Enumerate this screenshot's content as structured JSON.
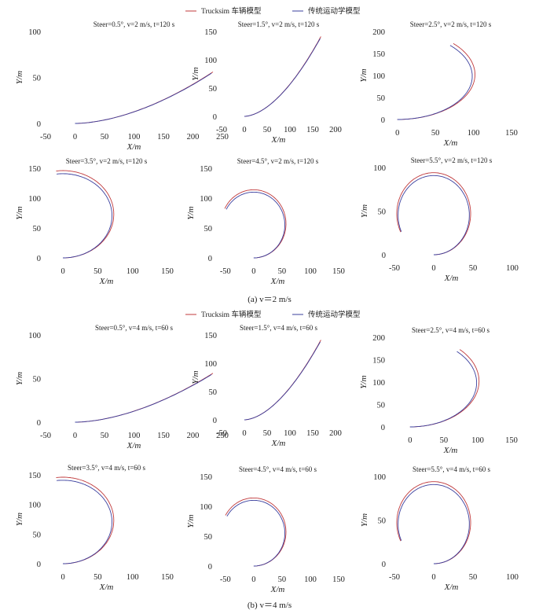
{
  "legend": {
    "entries": [
      {
        "label": "Trucksim 车辆模型",
        "color": "#c0393b"
      },
      {
        "label": "传统运动学模型",
        "color": "#3a3f9e"
      }
    ]
  },
  "captions": [
    "(a)  v＝2 m/s",
    "(b)  v＝4 m/s"
  ],
  "chart_data": [
    {
      "type": "line",
      "title": "Steer=0.5°, v=2 m/s, t=120 s",
      "xlabel": "X/m",
      "ylabel": "Y/m",
      "xlim": [
        -50,
        250
      ],
      "ylim": [
        0,
        100
      ],
      "xticks": [
        -50,
        0,
        50,
        100,
        150,
        200,
        250
      ],
      "yticks": [
        0,
        50,
        100
      ],
      "steer_deg": 0.5,
      "speed_mps": 2,
      "duration_s": 120,
      "end_point": [
        234,
        56
      ],
      "series": [
        {
          "name": "Trucksim 车辆模型",
          "color": "#c0393b"
        },
        {
          "name": "传统运动学模型",
          "color": "#3a3f9e"
        }
      ]
    },
    {
      "type": "line",
      "title": "Steer=1.5°, v=2 m/s, t=120 s",
      "xlabel": "X/m",
      "ylabel": "Y/m",
      "xlim": [
        -50,
        200
      ],
      "ylim": [
        0,
        150
      ],
      "xticks": [
        -50,
        0,
        50,
        100,
        150,
        200
      ],
      "yticks": [
        0,
        50,
        100,
        150
      ],
      "steer_deg": 1.5,
      "speed_mps": 2,
      "duration_s": 120,
      "end_point": [
        168,
        141
      ],
      "series": [
        {
          "name": "Trucksim 车辆模型",
          "color": "#c0393b"
        },
        {
          "name": "传统运动学模型",
          "color": "#3a3f9e"
        }
      ]
    },
    {
      "type": "line",
      "title": "Steer=2.5°, v=2 m/s, t=120 s",
      "xlabel": "X/m",
      "ylabel": "Y/m",
      "xlim": [
        -10,
        150
      ],
      "ylim": [
        0,
        200
      ],
      "xticks": [
        0,
        50,
        100,
        150
      ],
      "yticks": [
        0,
        50,
        100,
        150,
        200
      ],
      "steer_deg": 2.5,
      "speed_mps": 2,
      "duration_s": 120,
      "end_point": [
        73,
        172
      ],
      "series": [
        {
          "name": "Trucksim 车辆模型",
          "color": "#c0393b"
        },
        {
          "name": "传统运动学模型",
          "color": "#3a3f9e"
        }
      ]
    },
    {
      "type": "line",
      "title": "Steer=3.5°, v=2 m/s, t=120 s",
      "xlabel": "X/m",
      "ylabel": "Y/m",
      "xlim": [
        -25,
        150
      ],
      "ylim": [
        0,
        150
      ],
      "xticks": [
        0,
        50,
        100,
        150
      ],
      "yticks": [
        0,
        50,
        100,
        150
      ],
      "steer_deg": 3.5,
      "speed_mps": 2,
      "duration_s": 120,
      "end_point": [
        -10,
        147
      ],
      "series": [
        {
          "name": "Trucksim 车辆模型",
          "color": "#c0393b"
        },
        {
          "name": "传统运动学模型",
          "color": "#3a3f9e"
        }
      ]
    },
    {
      "type": "line",
      "title": "Steer=4.5°, v=2 m/s, t=120 s",
      "xlabel": "X/m",
      "ylabel": "Y/m",
      "xlim": [
        -65,
        150
      ],
      "ylim": [
        0,
        150
      ],
      "xticks": [
        -50,
        0,
        50,
        100,
        150
      ],
      "yticks": [
        0,
        50,
        100,
        150
      ],
      "steer_deg": 4.5,
      "speed_mps": 2,
      "duration_s": 120,
      "end_point": [
        -50,
        82
      ],
      "series": [
        {
          "name": "Trucksim 车辆模型",
          "color": "#c0393b"
        },
        {
          "name": "传统运动学模型",
          "color": "#3a3f9e"
        }
      ]
    },
    {
      "type": "line",
      "title": "Steer=5.5°, v=2 m/s, t=120 s",
      "xlabel": "X/m",
      "ylabel": "Y/m",
      "xlim": [
        -55,
        100
      ],
      "ylim": [
        0,
        100
      ],
      "xticks": [
        -50,
        0,
        50,
        100
      ],
      "yticks": [
        0,
        50,
        100
      ],
      "steer_deg": 5.5,
      "speed_mps": 2,
      "duration_s": 120,
      "end_point": [
        -42,
        26
      ],
      "series": [
        {
          "name": "Trucksim 车辆模型",
          "color": "#c0393b"
        },
        {
          "name": "传统运动学模型",
          "color": "#3a3f9e"
        }
      ]
    },
    {
      "type": "line",
      "title": "Steer=0.5°, v=4 m/s, t=60 s",
      "xlabel": "X/m",
      "ylabel": "Y/m",
      "xlim": [
        -50,
        250
      ],
      "ylim": [
        0,
        100
      ],
      "xticks": [
        -50,
        0,
        50,
        100,
        150,
        200,
        250
      ],
      "yticks": [
        0,
        50,
        100
      ],
      "steer_deg": 0.5,
      "speed_mps": 4,
      "duration_s": 60,
      "end_point": [
        234,
        56
      ],
      "series": [
        {
          "name": "Trucksim 车辆模型",
          "color": "#c0393b"
        },
        {
          "name": "传统运动学模型",
          "color": "#3a3f9e"
        }
      ]
    },
    {
      "type": "line",
      "title": "Steer=1.5°, v=4 m/s, t=60 s",
      "xlabel": "X/m",
      "ylabel": "Y/m",
      "xlim": [
        -50,
        200
      ],
      "ylim": [
        0,
        150
      ],
      "xticks": [
        -50,
        0,
        50,
        100,
        150,
        200
      ],
      "yticks": [
        0,
        50,
        100,
        150
      ],
      "steer_deg": 1.5,
      "speed_mps": 4,
      "duration_s": 60,
      "end_point": [
        168,
        141
      ],
      "series": [
        {
          "name": "Trucksim 车辆模型",
          "color": "#c0393b"
        },
        {
          "name": "传统运动学模型",
          "color": "#3a3f9e"
        }
      ]
    },
    {
      "type": "line",
      "title": "Steer=2.5°, v=4 m/s, t=60 s",
      "xlabel": "X/m",
      "ylabel": "Y/m",
      "xlim": [
        -30,
        150
      ],
      "ylim": [
        0,
        200
      ],
      "xticks": [
        0,
        50,
        100,
        150
      ],
      "yticks": [
        0,
        50,
        100,
        150,
        200
      ],
      "steer_deg": 2.5,
      "speed_mps": 4,
      "duration_s": 60,
      "end_point": [
        78,
        177
      ],
      "series": [
        {
          "name": "Trucksim 车辆模型",
          "color": "#c0393b"
        },
        {
          "name": "传统运动学模型",
          "color": "#3a3f9e"
        }
      ]
    },
    {
      "type": "line",
      "title": "Steer=3.5°, v=4 m/s, t=60 s",
      "xlabel": "X/m",
      "ylabel": "Y/m",
      "xlim": [
        -25,
        150
      ],
      "ylim": [
        0,
        150
      ],
      "xticks": [
        0,
        50,
        100,
        150
      ],
      "yticks": [
        0,
        50,
        100,
        150
      ],
      "steer_deg": 3.5,
      "speed_mps": 4,
      "duration_s": 60,
      "end_point": [
        -10,
        147
      ],
      "series": [
        {
          "name": "Trucksim 车辆模型",
          "color": "#c0393b"
        },
        {
          "name": "传统运动学模型",
          "color": "#3a3f9e"
        }
      ]
    },
    {
      "type": "line",
      "title": "Steer=4.5°, v=4 m/s, t=60 s",
      "xlabel": "X/m",
      "ylabel": "Y/m",
      "xlim": [
        -65,
        150
      ],
      "ylim": [
        0,
        150
      ],
      "xticks": [
        -50,
        0,
        50,
        100,
        150
      ],
      "yticks": [
        0,
        50,
        100,
        150
      ],
      "steer_deg": 4.5,
      "speed_mps": 4,
      "duration_s": 60,
      "end_point": [
        -50,
        85
      ],
      "series": [
        {
          "name": "Trucksim 车辆模型",
          "color": "#c0393b"
        },
        {
          "name": "传统运动学模型",
          "color": "#3a3f9e"
        }
      ]
    },
    {
      "type": "line",
      "title": "Steer=5.5°, v=4 m/s, t=60 s",
      "xlabel": "X/m",
      "ylabel": "Y/m",
      "xlim": [
        -55,
        100
      ],
      "ylim": [
        0,
        100
      ],
      "xticks": [
        -50,
        0,
        50,
        100
      ],
      "yticks": [
        0,
        50,
        100
      ],
      "steer_deg": 5.5,
      "speed_mps": 4,
      "duration_s": 60,
      "end_point": [
        -42,
        26
      ],
      "series": [
        {
          "name": "Trucksim 车辆模型",
          "color": "#c0393b"
        },
        {
          "name": "传统运动学模型",
          "color": "#3a3f9e"
        }
      ]
    }
  ]
}
